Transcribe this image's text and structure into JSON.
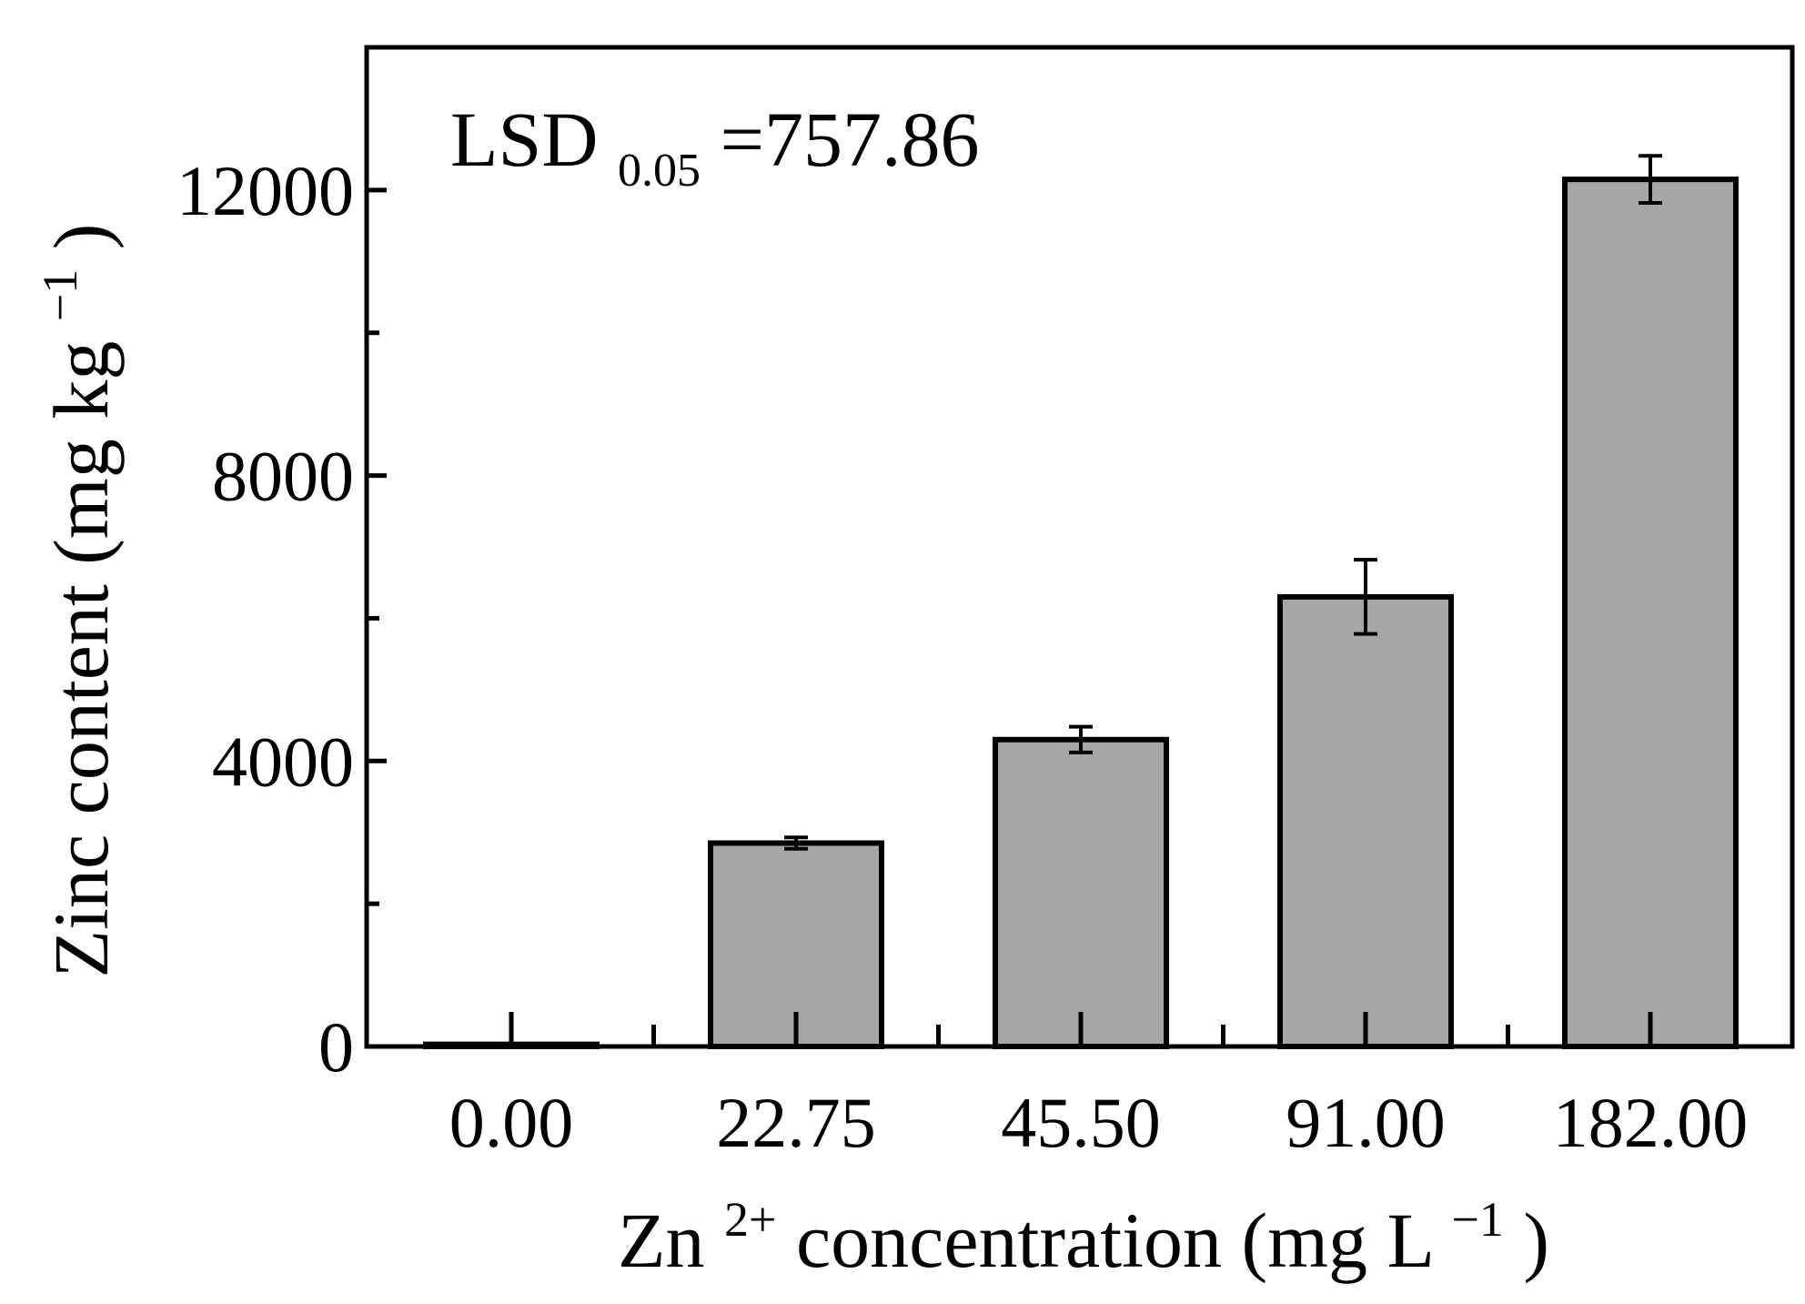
{
  "chart_data": {
    "type": "bar",
    "title": "",
    "categories": [
      "0.00",
      "22.75",
      "45.50",
      "91.00",
      "182.00"
    ],
    "values": [
      30,
      2850,
      4300,
      6300,
      12150
    ],
    "errors": [
      0,
      80,
      180,
      520,
      330
    ],
    "ylim": [
      0,
      14000
    ],
    "yticks": [
      0,
      4000,
      8000,
      12000
    ],
    "yticks_minor": [
      2000,
      6000,
      10000
    ],
    "ytick_labels": [
      "0",
      "4000",
      "8000",
      "12000"
    ],
    "xlabel": {
      "main": "Zn",
      "sup": "2+",
      "rest": " concentration  (mg L",
      "unit_sup": "−1",
      "close": ")"
    },
    "ylabel": {
      "main": "Zinc content (mg kg",
      "sup": "−1",
      "close": ")"
    },
    "annotation": {
      "main": "LSD",
      "sub": "0.05",
      "rest": "=757.86"
    },
    "colors": {
      "bar_fill": "#a6a6a6",
      "stroke": "#000000",
      "background": "#ffffff"
    },
    "grid": false,
    "legend": "none"
  }
}
